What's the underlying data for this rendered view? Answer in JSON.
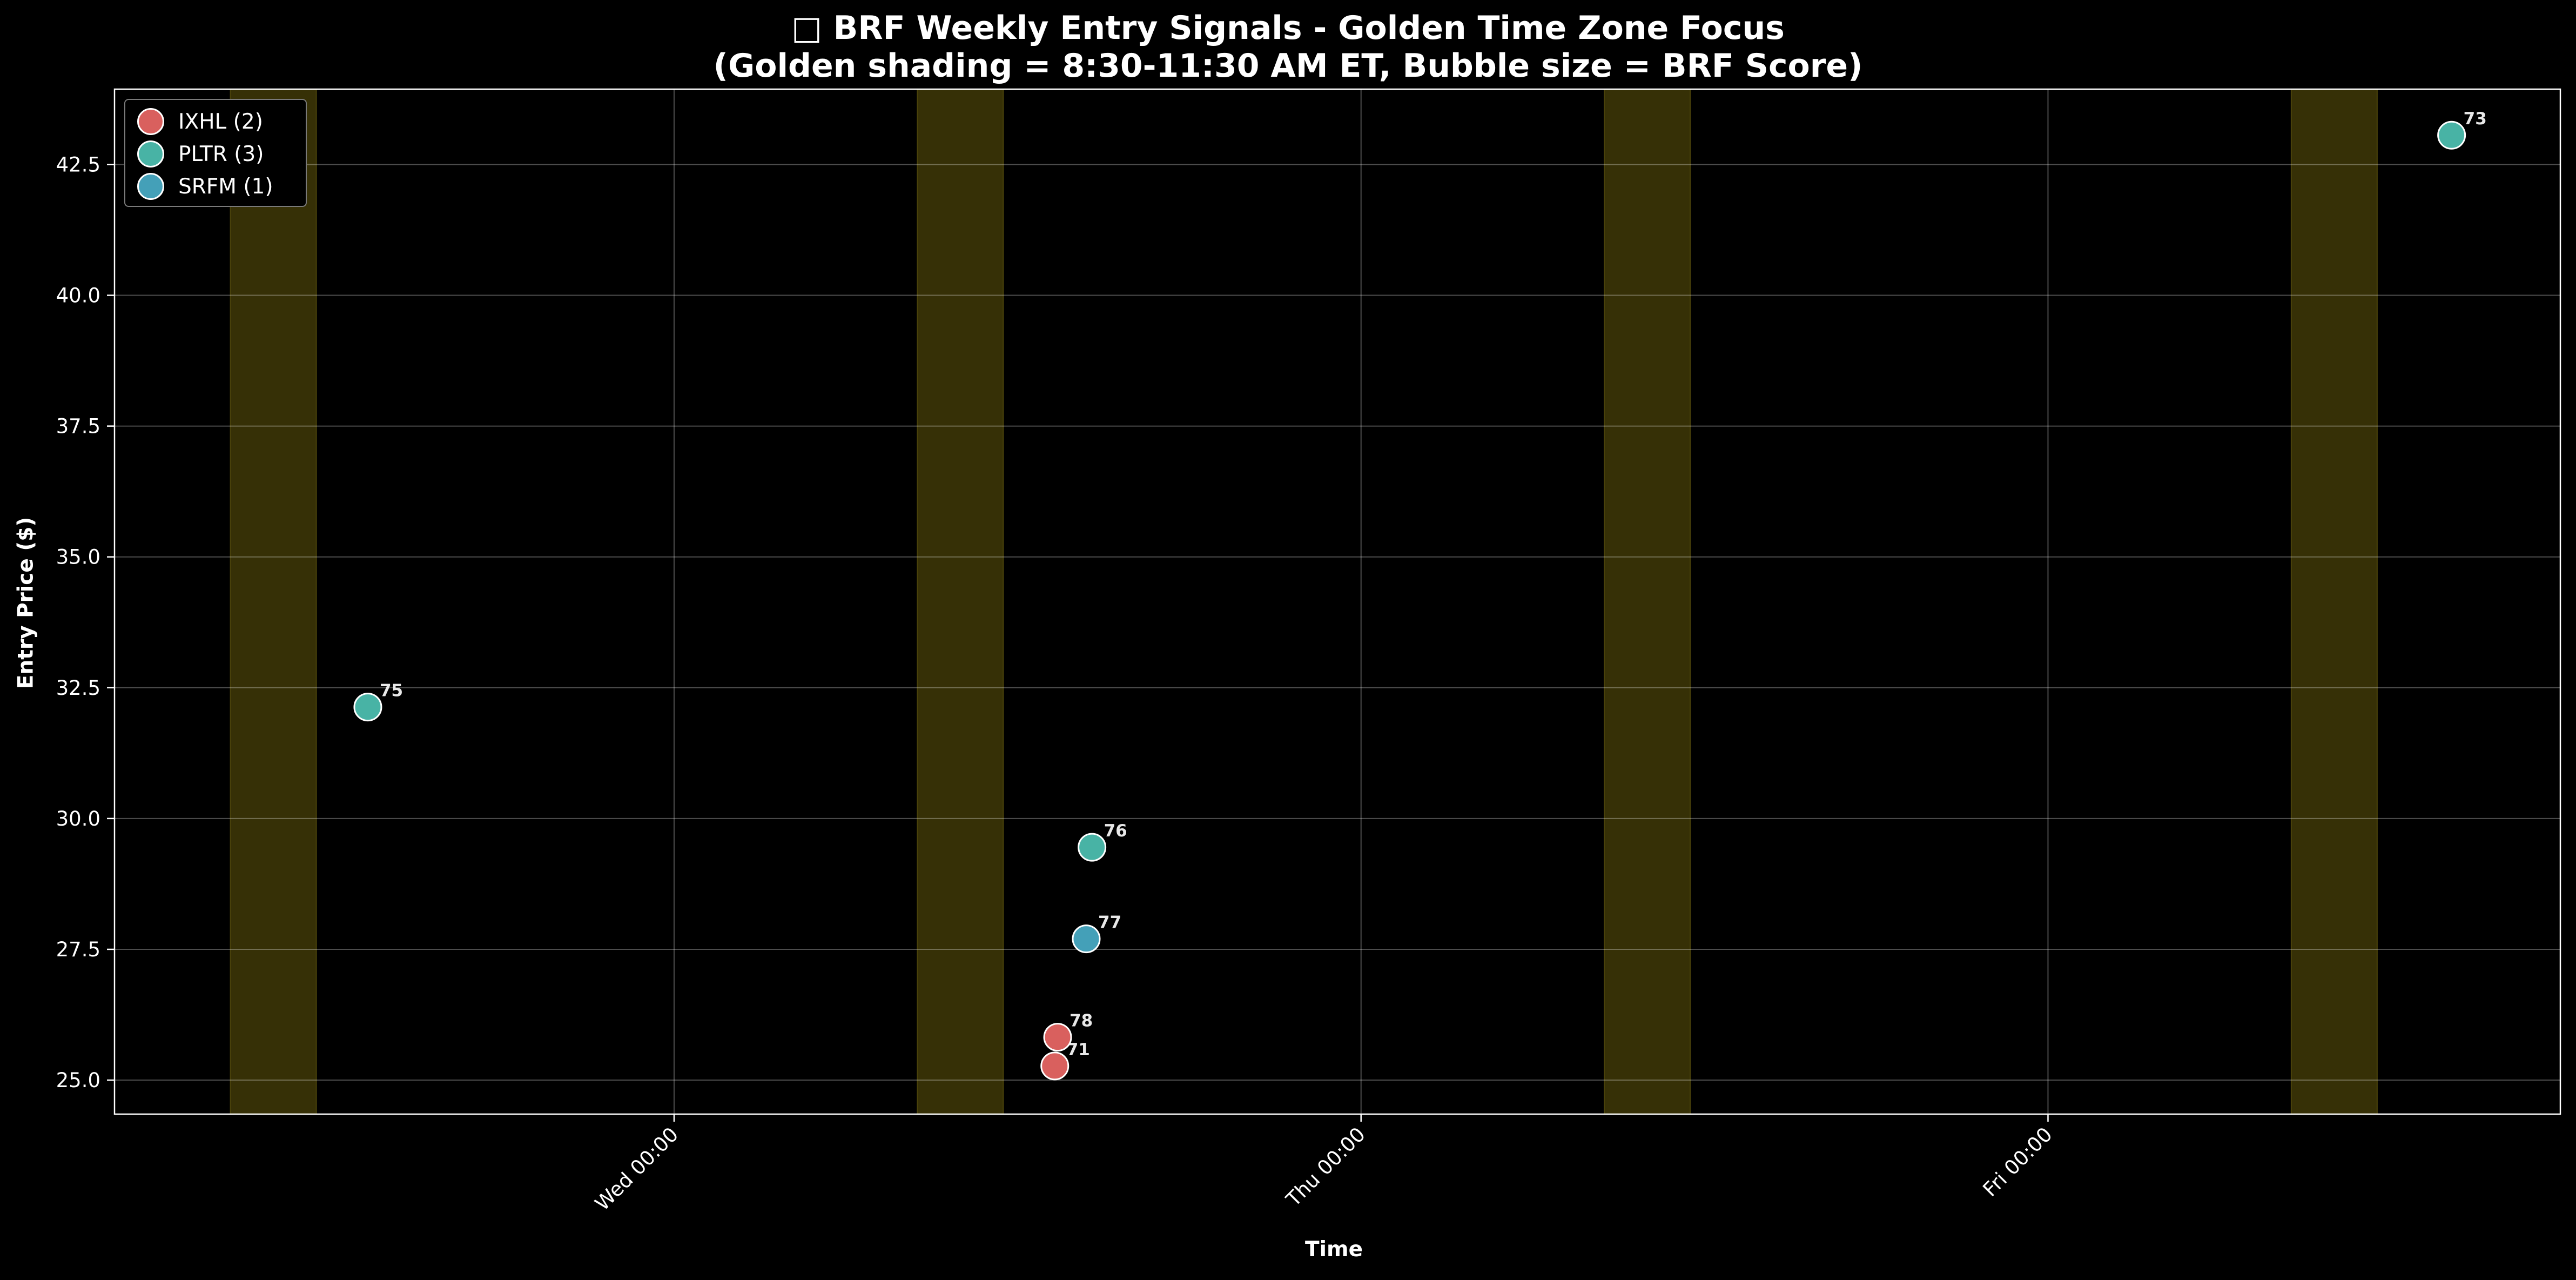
{
  "title_line1": "□ BRF Weekly Entry Signals - Golden Time Zone Focus",
  "title_line2": "(Golden shading = 8:30-11:30 AM ET, Bubble size = BRF Score)",
  "chart_data": {
    "type": "scatter",
    "xlabel": "Time",
    "ylabel": "Entry Price ($)",
    "x_unit": "hours since Tue 00:00",
    "x_range": [
      -4.15,
      81.3
    ],
    "ylim": [
      24.35,
      43.94
    ],
    "x_ticks": [
      {
        "value": 15.4,
        "label": "Wed 00:00"
      },
      {
        "value": 39.4,
        "label": "Thu 00:00"
      },
      {
        "value": 63.4,
        "label": "Fri 00:00"
      }
    ],
    "y_ticks": [
      {
        "value": 25.0,
        "label": "25.0"
      },
      {
        "value": 27.5,
        "label": "27.5"
      },
      {
        "value": 30.0,
        "label": "30.0"
      },
      {
        "value": 32.5,
        "label": "32.5"
      },
      {
        "value": 35.0,
        "label": "35.0"
      },
      {
        "value": 37.5,
        "label": "37.5"
      },
      {
        "value": 40.0,
        "label": "40.0"
      },
      {
        "value": 42.5,
        "label": "42.5"
      }
    ],
    "golden_zones": [
      {
        "start": -0.1,
        "end": 2.9
      },
      {
        "start": 23.9,
        "end": 26.9
      },
      {
        "start": 47.9,
        "end": 50.9
      },
      {
        "start": 71.9,
        "end": 74.9
      }
    ],
    "grid": true,
    "legend_position": "top-left",
    "series": [
      {
        "name": "IXHL (2)",
        "color": "#d9605e",
        "points": [
          {
            "x": 28.7,
            "y": 25.27,
            "score": "71"
          },
          {
            "x": 28.8,
            "y": 25.82,
            "score": "78"
          }
        ]
      },
      {
        "name": "PLTR (3)",
        "color": "#48b3a5",
        "points": [
          {
            "x": 4.7,
            "y": 32.13,
            "score": "75"
          },
          {
            "x": 30.0,
            "y": 29.45,
            "score": "76"
          },
          {
            "x": 77.5,
            "y": 43.06,
            "score": "73"
          }
        ]
      },
      {
        "name": "SRFM (1)",
        "color": "#44a0b8",
        "points": [
          {
            "x": 29.8,
            "y": 27.7,
            "score": "77"
          }
        ]
      }
    ]
  }
}
